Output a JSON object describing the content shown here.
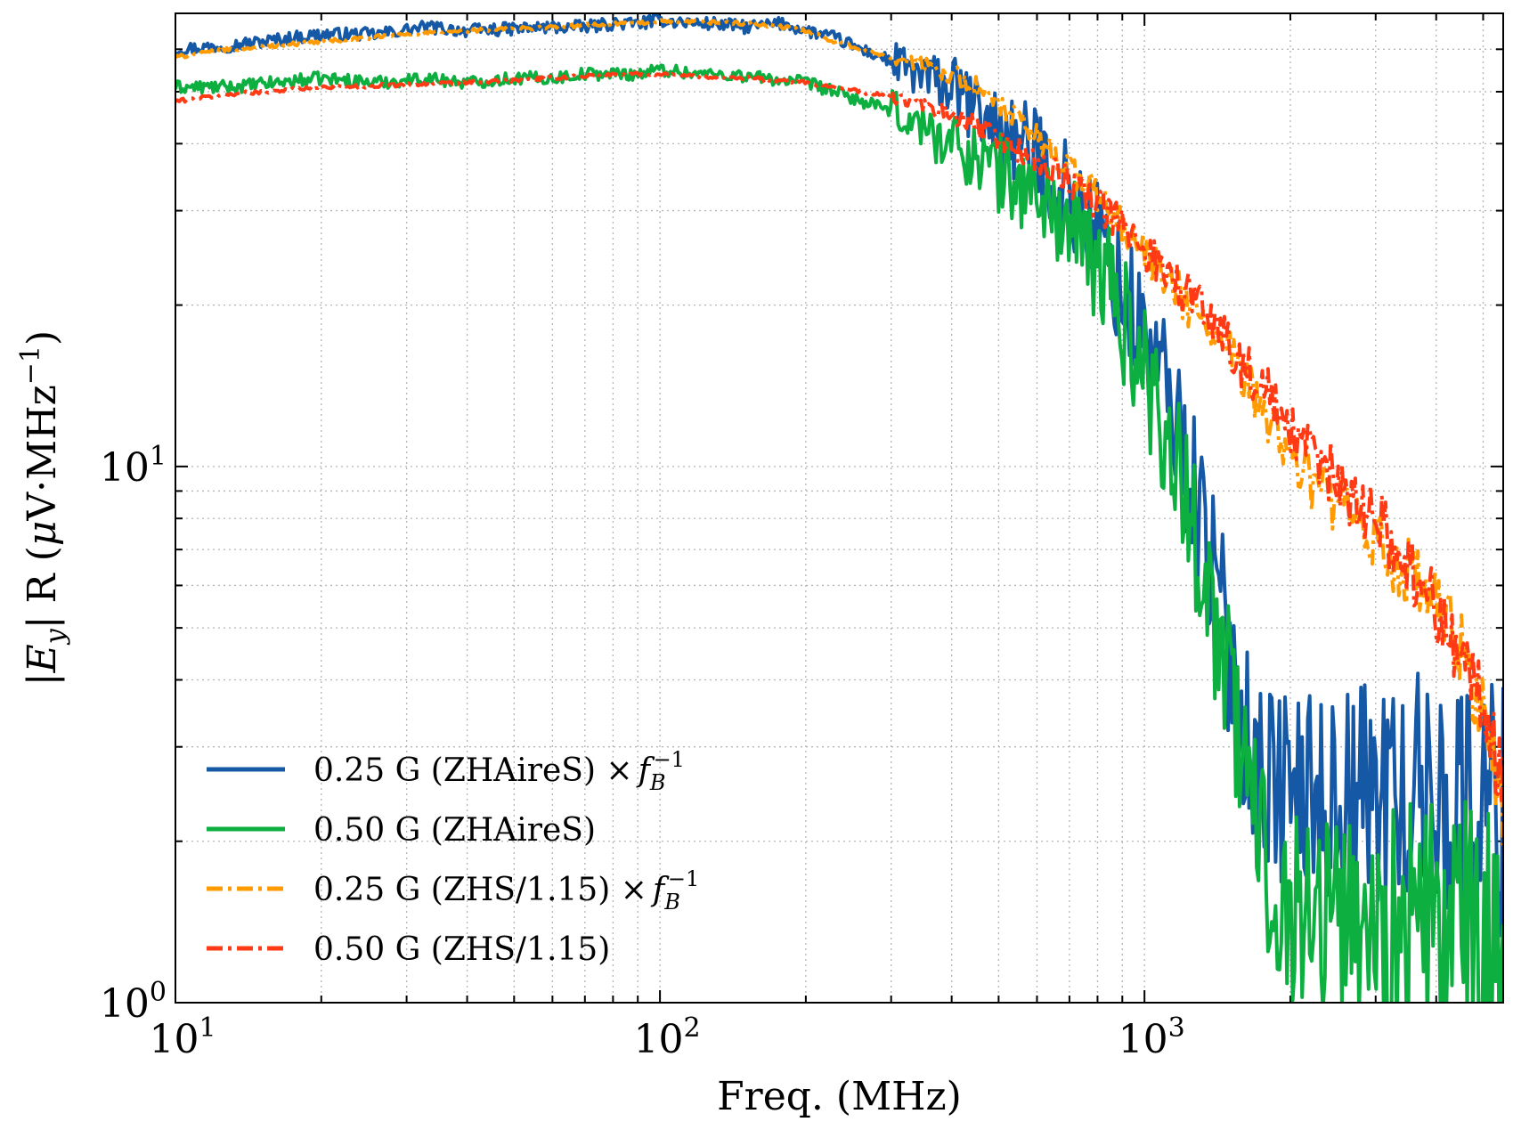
{
  "chart_data": {
    "type": "line",
    "xlabel": "Freq. (MHz)",
    "ylabel": "|E_y| R (μV·MHz⁻¹)",
    "xscale": "log",
    "yscale": "log",
    "xlim": [
      10,
      5500
    ],
    "ylim": [
      1,
      70
    ],
    "grid": true,
    "legend_position": "bottom-left",
    "x_ticks": [
      {
        "base": "10",
        "exp": "1"
      },
      {
        "base": "10",
        "exp": "2"
      },
      {
        "base": "10",
        "exp": "3"
      }
    ],
    "y_ticks": [
      {
        "base": "10",
        "exp": "0"
      },
      {
        "base": "10",
        "exp": "1"
      }
    ],
    "series": [
      {
        "name": "0.25 G (ZHAireS) × f_B⁻¹",
        "legend_main": "0.25 G (ZHAireS) ×",
        "legend_sym": "f",
        "legend_sub": "B",
        "legend_sup": "−1",
        "color": "#1558a6",
        "style": "solid",
        "noise": 0.1,
        "x": [
          10,
          13,
          20,
          26,
          33,
          40,
          50,
          60,
          70,
          80,
          90,
          100,
          110,
          120,
          130,
          150,
          180,
          200,
          230,
          260,
          300,
          350,
          400,
          450,
          500,
          550,
          600,
          650,
          700,
          750,
          800,
          850,
          900,
          950,
          1000,
          1050,
          1100,
          1150,
          1200,
          1250,
          1300,
          1350,
          1400,
          1500,
          1600,
          1700,
          1800,
          2000,
          2500,
          3000,
          3500,
          4000,
          4500,
          5000,
          5500
        ],
        "y": [
          60,
          61,
          64,
          64,
          66,
          65,
          65.5,
          66,
          66,
          67,
          67,
          68,
          67.5,
          67,
          67,
          66,
          67,
          65,
          63,
          60,
          57,
          53,
          51,
          46,
          43,
          40,
          38,
          35,
          32,
          29,
          27,
          24,
          21,
          19,
          17.5,
          16,
          14,
          12.5,
          11,
          9.5,
          8.2,
          7,
          6,
          4.5,
          3.4,
          2.8,
          2.6,
          2.5,
          2.4,
          2.5,
          2.4,
          2.5,
          2.3,
          2.4,
          2.3
        ]
      },
      {
        "name": "0.50 G (ZHAireS)",
        "legend_main": "0.50 G (ZHAireS)",
        "legend_sym": "",
        "legend_sub": "",
        "legend_sup": "",
        "color": "#0db040",
        "style": "solid",
        "noise": 0.1,
        "x": [
          10,
          13,
          20,
          26,
          33,
          40,
          50,
          60,
          70,
          80,
          90,
          100,
          110,
          120,
          130,
          150,
          180,
          200,
          230,
          260,
          300,
          350,
          400,
          450,
          500,
          550,
          600,
          650,
          700,
          750,
          800,
          850,
          900,
          950,
          1000,
          1050,
          1100,
          1150,
          1200,
          1250,
          1300,
          1350,
          1400,
          1500,
          1600,
          1700,
          1800,
          2000,
          2500,
          3000,
          3500,
          4000,
          4500,
          5000,
          5500
        ],
        "y": [
          51,
          51,
          53,
          52,
          53,
          52,
          53,
          53,
          54,
          54,
          54,
          55,
          54.5,
          54,
          54,
          53.5,
          52.5,
          52,
          50,
          48,
          46,
          43,
          40,
          38,
          35.5,
          33.5,
          32,
          30,
          28,
          25,
          23.5,
          22,
          19,
          17,
          15,
          13.5,
          12,
          10.5,
          9.2,
          8,
          7,
          6,
          5.2,
          3.8,
          2.8,
          2.2,
          1.8,
          1.5,
          1.5,
          1.4,
          1.4,
          1.4,
          1.35,
          1.3,
          1.3
        ]
      },
      {
        "name": "0.25 G (ZHS/1.15) × f_B⁻¹",
        "legend_main": "0.25 G (ZHS/1.15) ×",
        "legend_sym": "f",
        "legend_sub": "B",
        "legend_sup": "−1",
        "color": "#ff9a00",
        "style": "dashdot",
        "noise": 0.03,
        "x": [
          10,
          13,
          20,
          30,
          40,
          50,
          60,
          70,
          80,
          90,
          100,
          120,
          150,
          180,
          200,
          230,
          260,
          300,
          350,
          400,
          450,
          500,
          550,
          600,
          700,
          800,
          900,
          1000,
          1100,
          1200,
          1300,
          1400,
          1500,
          1600,
          1800,
          2000,
          2200,
          2500,
          2800,
          3000,
          3500,
          4000,
          4500,
          5000,
          5500
        ],
        "y": [
          58,
          60,
          62,
          64,
          65,
          65.5,
          66,
          66.5,
          67,
          67,
          67.5,
          67.5,
          67,
          66,
          65,
          62,
          60,
          58,
          56,
          54,
          51,
          47,
          44,
          41,
          36,
          32,
          28,
          25,
          22.5,
          20.5,
          19,
          17.5,
          16,
          14.5,
          12.5,
          10.5,
          9.5,
          8.5,
          7.5,
          7.2,
          6.3,
          5.5,
          4.5,
          3.5,
          2.2
        ]
      },
      {
        "name": "0.50 G (ZHS/1.15)",
        "legend_main": "0.50 G (ZHS/1.15)",
        "legend_sym": "",
        "legend_sub": "",
        "legend_sup": "",
        "color": "#ff3a14",
        "style": "dashdot",
        "noise": 0.03,
        "x": [
          10,
          13,
          20,
          30,
          40,
          50,
          60,
          70,
          80,
          90,
          100,
          120,
          150,
          180,
          200,
          230,
          260,
          300,
          350,
          400,
          450,
          500,
          550,
          600,
          700,
          800,
          900,
          1000,
          1100,
          1200,
          1300,
          1400,
          1500,
          1600,
          1800,
          2000,
          2200,
          2500,
          2800,
          3000,
          3500,
          4000,
          4500,
          5000,
          5500
        ],
        "y": [
          48,
          49.5,
          51,
          51.5,
          52,
          52.5,
          53,
          53.5,
          54,
          54,
          54,
          53.5,
          53,
          52.5,
          52,
          51,
          50,
          49,
          47,
          45,
          43,
          41,
          39,
          37,
          34,
          31,
          28,
          25.5,
          23.5,
          21.5,
          20,
          18.5,
          17,
          15.5,
          13.5,
          11.5,
          10.5,
          9.5,
          8.5,
          8,
          6.5,
          5.5,
          4.5,
          3.5,
          2.6
        ]
      }
    ]
  }
}
